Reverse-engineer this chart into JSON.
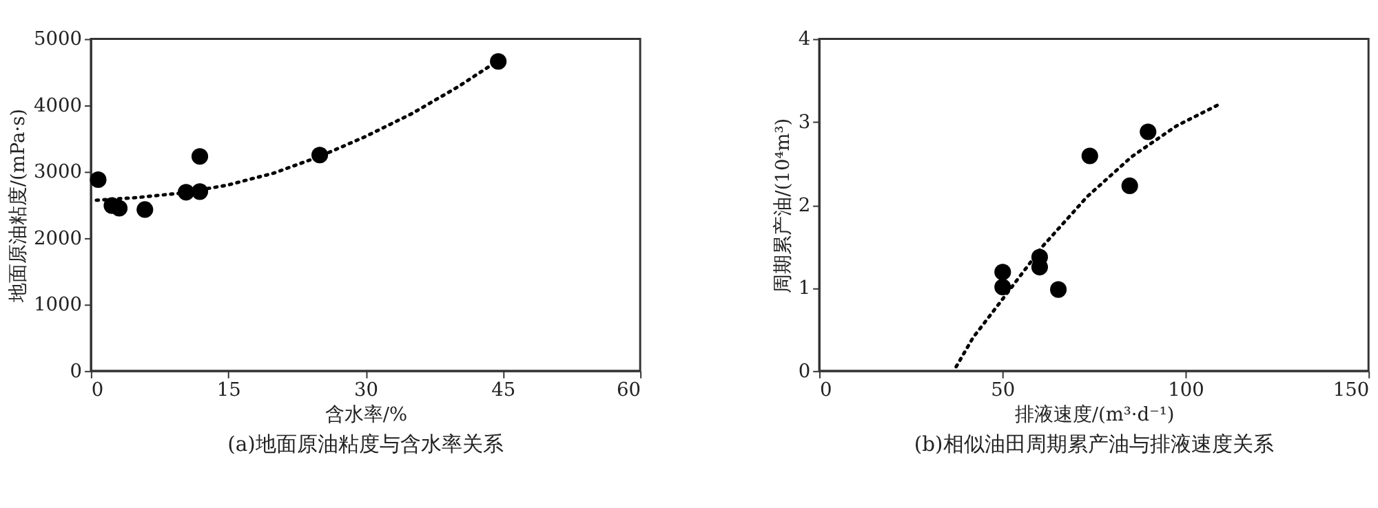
{
  "chart_data": [
    {
      "type": "scatter",
      "xlabel": "含水率/%",
      "ylabel": "地面原油粘度/(mPa·s)",
      "annotations": [
        "(a)地面原油粘度与含水率关系"
      ],
      "xlim": [
        0,
        60
      ],
      "xticks": [
        0,
        15,
        30,
        45,
        60
      ],
      "ylim": [
        0,
        5000
      ],
      "yticks": [
        0,
        1000,
        2000,
        3000,
        4000,
        5000
      ],
      "grid": false,
      "series": [
        {
          "color": "#000000",
          "marker": "circle",
          "x": [
            0.8,
            2.3,
            3.1,
            5.9,
            10.4,
            11.9,
            11.9,
            25.0,
            44.5
          ],
          "values": [
            2880,
            2490,
            2450,
            2430,
            2690,
            2700,
            3230,
            3250,
            4660
          ]
        },
        {
          "type": "line",
          "color": "#000000",
          "marker": "none",
          "line_style": "dotted",
          "x": [
            0.6,
            5,
            10,
            15,
            20,
            25,
            30,
            35,
            40,
            43.9
          ],
          "values": [
            2570,
            2610,
            2680,
            2800,
            2980,
            3230,
            3530,
            3870,
            4270,
            4620
          ]
        }
      ]
    },
    {
      "type": "scatter",
      "xlabel": "排液速度/(m³·d⁻¹)",
      "ylabel": "周期累产油/(10⁴m³)",
      "annotations": [
        "(b)相似油田周期累产油与排液速度关系"
      ],
      "xlim": [
        0,
        150
      ],
      "xticks": [
        0,
        50,
        100,
        150
      ],
      "ylim": [
        0,
        4
      ],
      "yticks": [
        0,
        1,
        2,
        3,
        4
      ],
      "grid": false,
      "series": [
        {
          "color": "#000000",
          "marker": "circle",
          "x": [
            50.1,
            50.1,
            60.2,
            60.2,
            65.3,
            73.9,
            84.8,
            89.8
          ],
          "values": [
            1.19,
            1.01,
            1.37,
            1.25,
            0.98,
            2.59,
            2.23,
            2.88
          ]
        },
        {
          "type": "line",
          "color": "#000000",
          "marker": "none",
          "line_style": "dotted",
          "x": [
            37.4,
            42,
            50,
            61,
            73.2,
            85.3,
            97.5,
            108.7
          ],
          "values": [
            0.05,
            0.4,
            0.86,
            1.5,
            2.1,
            2.58,
            2.95,
            3.2
          ]
        }
      ]
    }
  ]
}
